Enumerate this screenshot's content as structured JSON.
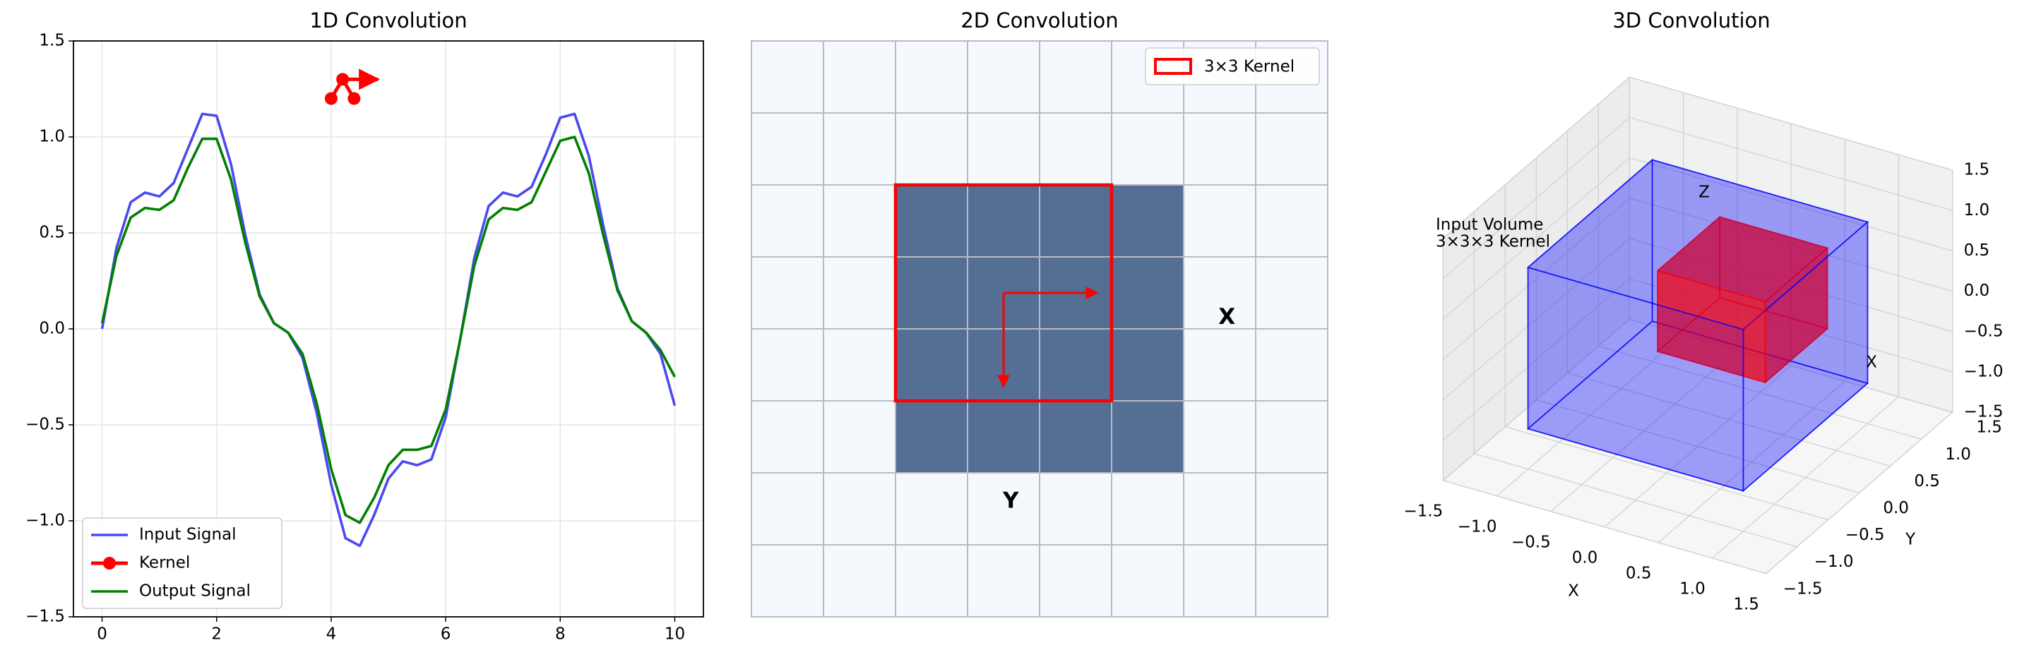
{
  "chart_data": [
    {
      "type": "line",
      "title": "1D Convolution",
      "x": [
        0,
        0.25,
        0.5,
        0.75,
        1,
        1.25,
        1.5,
        1.75,
        2,
        2.25,
        2.5,
        2.75,
        3,
        3.25,
        3.5,
        3.75,
        4,
        4.25,
        4.5,
        4.75,
        5,
        5.25,
        5.5,
        5.75,
        6,
        6.25,
        6.5,
        6.75,
        7,
        7.25,
        7.5,
        7.75,
        8,
        8.25,
        8.5,
        8.75,
        9,
        9.25,
        9.5,
        9.75,
        10
      ],
      "series": [
        {
          "name": "Input Signal",
          "color": "#4a4af0",
          "values": [
            0,
            0.42,
            0.66,
            0.71,
            0.69,
            0.76,
            0.94,
            1.12,
            1.11,
            0.86,
            0.49,
            0.18,
            0.03,
            -0.02,
            -0.15,
            -0.44,
            -0.81,
            -1.09,
            -1.13,
            -0.97,
            -0.78,
            -0.69,
            -0.71,
            -0.68,
            -0.46,
            -0.06,
            0.37,
            0.64,
            0.71,
            0.69,
            0.74,
            0.91,
            1.1,
            1.12,
            0.9,
            0.54,
            0.21,
            0.04,
            -0.02,
            -0.13,
            -0.4
          ]
        },
        {
          "name": "Kernel",
          "color": "#ff0000",
          "marker": true,
          "x": [
            4,
            4.2,
            4.4
          ],
          "values": [
            1.2,
            1.3,
            1.2
          ]
        },
        {
          "name": "Output Signal",
          "color": "#008000",
          "values": [
            0.03,
            0.38,
            0.58,
            0.63,
            0.62,
            0.67,
            0.84,
            0.99,
            0.99,
            0.78,
            0.45,
            0.17,
            0.03,
            -0.02,
            -0.13,
            -0.39,
            -0.73,
            -0.97,
            -1.01,
            -0.88,
            -0.71,
            -0.63,
            -0.63,
            -0.61,
            -0.42,
            -0.06,
            0.33,
            0.57,
            0.63,
            0.62,
            0.66,
            0.82,
            0.98,
            1,
            0.81,
            0.49,
            0.2,
            0.04,
            -0.02,
            -0.11,
            -0.25
          ]
        }
      ],
      "xlim": [
        -0.5,
        10.5
      ],
      "xticks": [
        0,
        2,
        4,
        6,
        8,
        10
      ],
      "ylim": [
        -1.5,
        1.5
      ],
      "yticks": [
        {
          "value": -1.5,
          "label": "−1.5"
        },
        {
          "value": -1,
          "label": "−1.0"
        },
        {
          "value": -0.5,
          "label": "−0.5"
        },
        {
          "value": 0,
          "label": "0.0"
        },
        0.5,
        {
          "value": 1,
          "label": "1.0"
        },
        1.5
      ],
      "grid": true,
      "legend": "lower left"
    },
    {
      "type": "heatmap",
      "title": "2D Convolution",
      "values": [
        [
          0,
          0,
          0,
          0,
          0,
          0,
          0,
          0
        ],
        [
          0,
          0,
          0,
          0,
          0,
          0,
          0,
          0
        ],
        [
          0,
          0,
          1,
          1,
          1,
          1,
          0,
          0
        ],
        [
          0,
          0,
          1,
          1,
          1,
          1,
          0,
          0
        ],
        [
          0,
          0,
          1,
          1,
          1,
          1,
          0,
          0
        ],
        [
          0,
          0,
          1,
          1,
          1,
          1,
          0,
          0
        ],
        [
          0,
          0,
          0,
          0,
          0,
          0,
          0,
          0
        ],
        [
          0,
          0,
          0,
          0,
          0,
          0,
          0,
          0
        ]
      ],
      "colormap": [
        "#f5f9fd",
        "#546e94"
      ],
      "kernel": {
        "name": "3×3 Kernel",
        "color": "#ff0000",
        "x": 2,
        "y": 2,
        "size": 3
      },
      "annotations": [
        {
          "text": "X",
          "color": "#ff0000"
        },
        {
          "text": "Y",
          "color": "#ff0000"
        }
      ],
      "legend": "upper right"
    },
    {
      "type": "volume3d",
      "title": "3D Convolution",
      "xlabel": "X",
      "ylabel": "Y",
      "xlim": [
        -1.5,
        1.5
      ],
      "ylim": [
        -1.5,
        1.5
      ],
      "zlim": [
        -1.5,
        1.5
      ],
      "xticks": [
        {
          "value": -1.5,
          "label": "−1.5"
        },
        {
          "value": -1,
          "label": "−1.0"
        },
        {
          "value": -0.5,
          "label": "−0.5"
        },
        {
          "value": 0,
          "label": "0.0"
        },
        0.5,
        {
          "value": 1,
          "label": "1.0"
        },
        1.5
      ],
      "yticks": [
        {
          "value": -1.5,
          "label": "−1.5"
        },
        {
          "value": -1,
          "label": "−1.0"
        },
        {
          "value": -0.5,
          "label": "−0.5"
        },
        {
          "value": 0,
          "label": "0.0"
        },
        0.5,
        {
          "value": 1,
          "label": "1.0"
        },
        1.5
      ],
      "zticks": [
        {
          "value": -1.5,
          "label": "−1.5"
        },
        {
          "value": -1,
          "label": "−1.0"
        },
        {
          "value": -0.5,
          "label": "−0.5"
        },
        {
          "value": 0,
          "label": "0.0"
        },
        0.5,
        {
          "value": 1,
          "label": "1.0"
        },
        1.5
      ],
      "volumes": [
        {
          "name": "Input Volume",
          "color": "#0000ff",
          "min": [
            -1,
            -1,
            -1
          ],
          "max": [
            1,
            1,
            1
          ]
        },
        {
          "name": "3×3×3 Kernel",
          "color": "#ff0000",
          "min": [
            -0.2,
            -0.3,
            -0.2
          ],
          "max": [
            0.8,
            0.7,
            0.8
          ]
        }
      ],
      "annotations": [
        {
          "text": "Z",
          "color": "#800080"
        },
        {
          "text": "X",
          "color": "#ff0000"
        }
      ]
    }
  ]
}
